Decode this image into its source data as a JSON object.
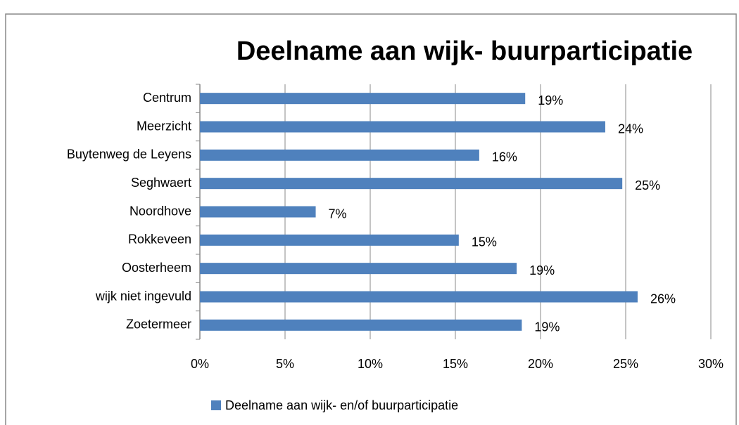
{
  "chart_data": {
    "type": "barh",
    "title": "Deelname aan wijk- buurparticipatie",
    "categories": [
      "Centrum",
      "Meerzicht",
      "Buytenweg de Leyens",
      "Seghwaert",
      "Noordhove",
      "Rokkeveen",
      "Oosterheem",
      "wijk niet ingevuld",
      "Zoetermeer"
    ],
    "series": [
      {
        "name": "Deelname aan wijk- en/of buurparticipatie",
        "color": "#4f81bd",
        "values": [
          19.1,
          23.8,
          16.4,
          24.8,
          6.8,
          15.2,
          18.6,
          25.7,
          18.9
        ],
        "value_labels": [
          "19%",
          "24%",
          "16%",
          "25%",
          "7%",
          "15%",
          "19%",
          "26%",
          "19%"
        ]
      }
    ],
    "xlim": [
      0,
      30
    ],
    "xticks": [
      {
        "value": 0,
        "label": "0%"
      },
      {
        "value": 5,
        "label": "5%"
      },
      {
        "value": 10,
        "label": "10%"
      },
      {
        "value": 15,
        "label": "15%"
      },
      {
        "value": 20,
        "label": "20%"
      },
      {
        "value": 25,
        "label": "25%"
      },
      {
        "value": 30,
        "label": "30%"
      }
    ],
    "grid": true,
    "legend": "bottom"
  }
}
